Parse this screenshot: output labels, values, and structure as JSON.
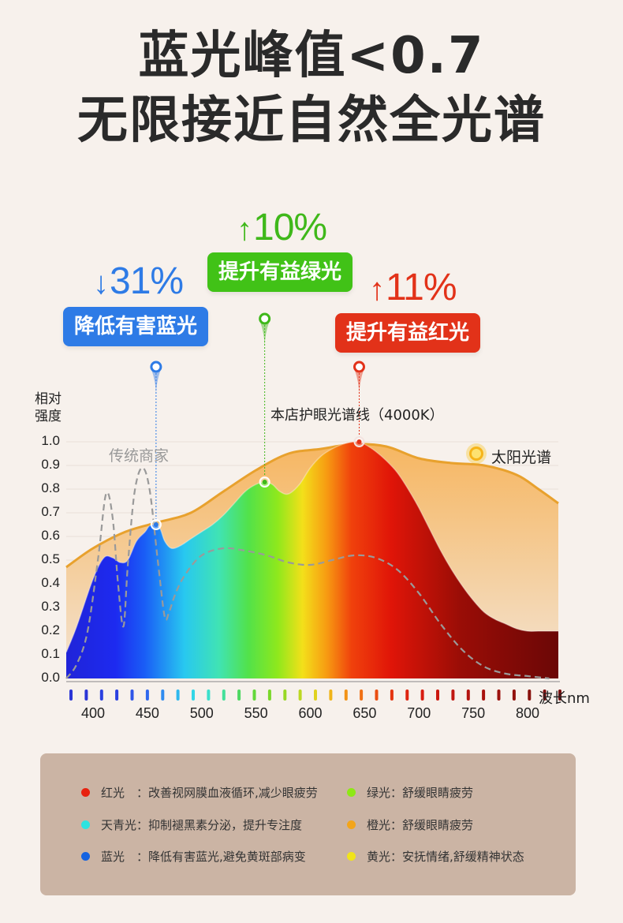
{
  "title_line1": "蓝光峰值<0.7",
  "title_line2": "无限接近自然全光谱",
  "callouts": [
    {
      "arrow": "↓",
      "value": "31%",
      "label": "降低有害蓝光",
      "color": "#2e7be6",
      "wavelength": 458
    },
    {
      "arrow": "↑",
      "value": "10%",
      "label": "提升有益绿光",
      "color": "#3fb81a",
      "wavelength": 558
    },
    {
      "arrow": "↑",
      "value": "11%",
      "label": "提升有益红光",
      "color": "#e23219",
      "wavelength": 645
    }
  ],
  "chart_data": {
    "type": "line",
    "ylabel": "相对强度",
    "xlabel": "波长nm",
    "xlim": [
      375,
      830
    ],
    "ylim": [
      0,
      1.0
    ],
    "yticks": [
      "1.0",
      "0.9",
      "0.8",
      "0.7",
      "0.6",
      "0.5",
      "0.4",
      "0.3",
      "0.2",
      "0.1",
      "0.0"
    ],
    "xticks": [
      400,
      450,
      500,
      550,
      600,
      650,
      700,
      750,
      800
    ],
    "series": [
      {
        "name": "太阳光谱",
        "color": "#e8a12d",
        "x": [
          375,
          400,
          430,
          460,
          490,
          520,
          550,
          580,
          610,
          640,
          670,
          700,
          730,
          760,
          790,
          810,
          830
        ],
        "y": [
          0.47,
          0.55,
          0.62,
          0.66,
          0.7,
          0.79,
          0.88,
          0.95,
          0.97,
          0.99,
          0.98,
          0.93,
          0.91,
          0.9,
          0.86,
          0.8,
          0.74
        ]
      },
      {
        "name": "本店护眼光谱线（4000K）",
        "color": "spectrum",
        "x": [
          375,
          385,
          400,
          410,
          418,
          425,
          432,
          440,
          448,
          452,
          458,
          462,
          466,
          472,
          480,
          490,
          500,
          510,
          520,
          530,
          540,
          550,
          558,
          565,
          572,
          580,
          590,
          600,
          610,
          620,
          630,
          640,
          645,
          650,
          660,
          670,
          680,
          690,
          700,
          710,
          720,
          730,
          740,
          750,
          760,
          770,
          780,
          790,
          800,
          810,
          820,
          830
        ],
        "y": [
          0.11,
          0.22,
          0.42,
          0.51,
          0.51,
          0.49,
          0.5,
          0.58,
          0.62,
          0.645,
          0.65,
          0.63,
          0.58,
          0.55,
          0.56,
          0.59,
          0.62,
          0.65,
          0.69,
          0.74,
          0.79,
          0.82,
          0.83,
          0.82,
          0.79,
          0.78,
          0.82,
          0.89,
          0.94,
          0.97,
          0.99,
          1.0,
          1.0,
          0.99,
          0.96,
          0.92,
          0.87,
          0.8,
          0.72,
          0.63,
          0.54,
          0.46,
          0.39,
          0.33,
          0.28,
          0.25,
          0.23,
          0.21,
          0.2,
          0.2,
          0.2,
          0.2
        ]
      },
      {
        "name": "传统商家",
        "color": "#999999",
        "x": [
          375,
          385,
          395,
          405,
          412,
          418,
          423,
          428,
          432,
          438,
          445,
          452,
          460,
          466,
          470,
          476,
          485,
          500,
          520,
          540,
          560,
          580,
          600,
          620,
          640,
          660,
          680,
          700,
          720,
          740,
          760,
          780,
          800,
          820
        ],
        "y": [
          0.0,
          0.06,
          0.2,
          0.52,
          0.78,
          0.68,
          0.4,
          0.22,
          0.48,
          0.78,
          0.89,
          0.8,
          0.48,
          0.26,
          0.28,
          0.36,
          0.44,
          0.52,
          0.55,
          0.54,
          0.52,
          0.49,
          0.48,
          0.5,
          0.52,
          0.51,
          0.46,
          0.36,
          0.23,
          0.12,
          0.05,
          0.02,
          0.01,
          0.0
        ]
      }
    ],
    "markers": [
      {
        "x": 458,
        "y": 0.65,
        "color": "#2e7be6"
      },
      {
        "x": 558,
        "y": 0.83,
        "color": "#3fb81a"
      },
      {
        "x": 645,
        "y": 1.0,
        "color": "#e23219"
      }
    ],
    "annotations": {
      "ours_label": "本店护眼光谱线（4000K）",
      "traditional_label": "传统商家",
      "sun_label": "太阳光谱"
    }
  },
  "legend": [
    {
      "color": "#e8220f",
      "text": "红光　：改善视网膜血液循环,减少眼疲劳"
    },
    {
      "color": "#8ee815",
      "text": "绿光：舒缓眼睛疲劳"
    },
    {
      "color": "#2ee3e0",
      "text": "天青光：抑制褪黑素分泌，提升专注度"
    },
    {
      "color": "#f3a51a",
      "text": "橙光：舒缓眼睛疲劳"
    },
    {
      "color": "#1563e0",
      "text": "蓝光　：降低有害蓝光,避免黄斑部病变"
    },
    {
      "color": "#f1e41a",
      "text": "黄光：安抚情绪,舒缓精神状态"
    }
  ]
}
